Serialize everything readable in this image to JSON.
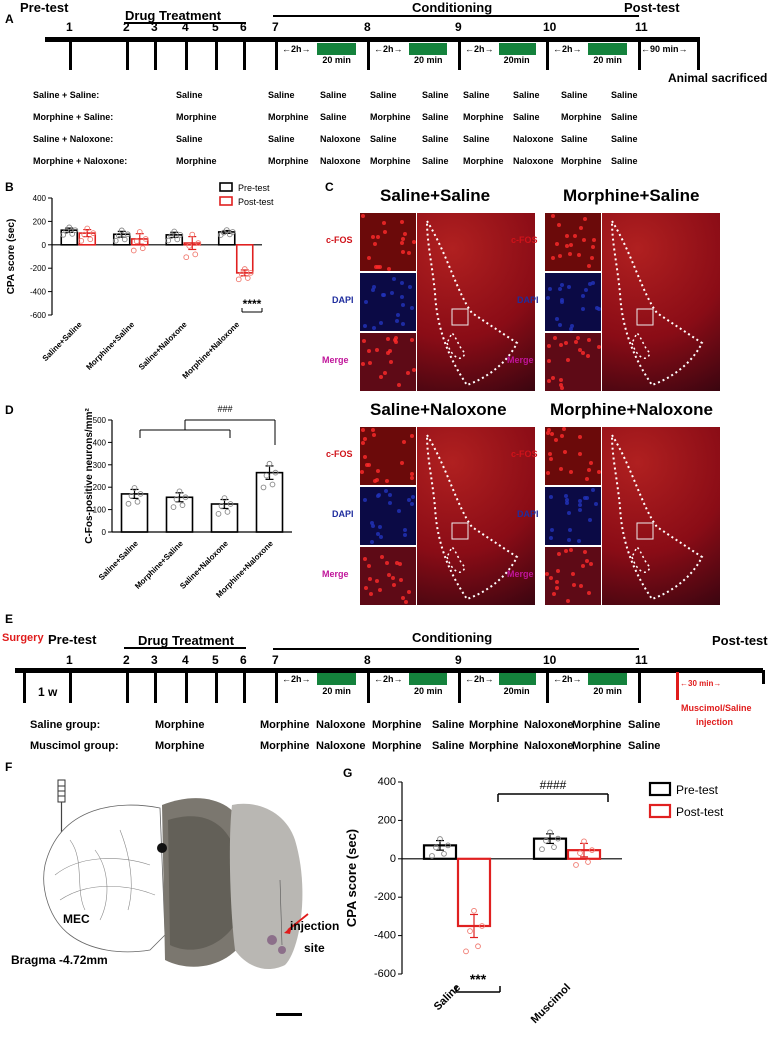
{
  "panelA": {
    "letter": "A",
    "phases": {
      "pretest": "Pre-test",
      "drug": "Drug Treatment",
      "conditioning": "Conditioning",
      "posttest": "Post-test"
    },
    "days": [
      "1",
      "2",
      "3",
      "4",
      "5",
      "6",
      "7",
      "8",
      "9",
      "10",
      "11"
    ],
    "gap_labels": [
      "2h",
      "2h",
      "2h",
      "2h"
    ],
    "session_labels": [
      "20 min",
      "20 min",
      "20min",
      "20 min"
    ],
    "after_label": "90 min",
    "end_label": "Animal sacrificed",
    "groups": [
      {
        "name": "Saline + Saline:",
        "drug": "Saline",
        "cond": [
          "Saline",
          "Saline",
          "Saline",
          "Saline",
          "Saline",
          "Saline",
          "Saline",
          "Saline"
        ]
      },
      {
        "name": "Morphine + Saline:",
        "drug": "Morphine",
        "cond": [
          "Morphine",
          "Saline",
          "Morphine",
          "Saline",
          "Morphine",
          "Saline",
          "Morphine",
          "Saline"
        ]
      },
      {
        "name": "Saline + Naloxone:",
        "drug": "Saline",
        "cond": [
          "Saline",
          "Naloxone",
          "Saline",
          "Saline",
          "Saline",
          "Naloxone",
          "Saline",
          "Saline"
        ]
      },
      {
        "name": "Morphine + Naloxone:",
        "drug": "Morphine",
        "cond": [
          "Morphine",
          "Naloxone",
          "Morphine",
          "Saline",
          "Morphine",
          "Naloxone",
          "Morphine",
          "Saline"
        ]
      }
    ]
  },
  "panelC": {
    "letter": "C",
    "titles": [
      "Saline+Saline",
      "Morphine+Saline",
      "Saline+Naloxone",
      "Morphine+Naloxone"
    ],
    "channels": [
      "c-FOS",
      "DAPI",
      "Merge"
    ],
    "colors": {
      "cfos": "#d0121a",
      "dapi": "#1f2d9e",
      "merge": "#c0149a"
    }
  },
  "panelE": {
    "letter": "E",
    "surgery": "Surgery",
    "phases": {
      "pretest": "Pre-test",
      "drug": "Drug Treatment",
      "conditioning": "Conditioning",
      "posttest": "Post-test"
    },
    "days": [
      "1",
      "2",
      "3",
      "4",
      "5",
      "6",
      "7",
      "8",
      "9",
      "10",
      "11"
    ],
    "week": "1 w",
    "gap_labels": [
      "2h",
      "2h",
      "2h",
      "2h"
    ],
    "session_labels": [
      "20 min",
      "20 min",
      "20min",
      "20 min"
    ],
    "after_label": "30 min",
    "injection": [
      "Muscimol/Saline",
      "injection"
    ],
    "groups": [
      {
        "name": "Saline group:",
        "drug": "Morphine",
        "cond": "Morphine  Naloxone  Morphine  Saline   Morphine  Naloxone    Morphine  Saline"
      },
      {
        "name": "Muscimol group:",
        "drug": "Morphine",
        "cond": "Morphine  Naloxone  Morphine  Saline   Morphine  Naloxone    Morphine  Saline"
      }
    ]
  },
  "panelF": {
    "letter": "F",
    "region": "MEC",
    "coord": "Bragma -4.72mm",
    "annot": [
      "injection",
      "site"
    ]
  },
  "chart_data": [
    {
      "id": "B",
      "type": "bar",
      "ylabel": "CPA score (sec)",
      "categories": [
        "Saline+Saline",
        "Morphine+Saline",
        "Saline+Naloxone",
        "Morphine+Naloxone"
      ],
      "series": [
        {
          "name": "Pre-test",
          "values": [
            125,
            90,
            85,
            110
          ],
          "err": [
            18,
            25,
            22,
            12
          ],
          "color": "#000000"
        },
        {
          "name": "Post-test",
          "values": [
            100,
            50,
            15,
            -240
          ],
          "err": [
            30,
            45,
            55,
            25
          ],
          "color": "#e02020"
        }
      ],
      "ylim": [
        -600,
        400
      ],
      "yticks": [
        -600,
        -400,
        -200,
        0,
        200,
        400
      ],
      "significance": "****",
      "legend": "top-right"
    },
    {
      "id": "D",
      "type": "bar",
      "ylabel": "C-Fos-positive neurons/mm²",
      "categories": [
        "Saline+Saline",
        "Morphine+Saline",
        "Saline+Naloxone",
        "Morphine+Naloxone"
      ],
      "series": [
        {
          "name": "",
          "values": [
            170,
            155,
            125,
            265
          ],
          "err": [
            20,
            20,
            20,
            30
          ],
          "color": "#000000"
        }
      ],
      "ylim": [
        0,
        500
      ],
      "yticks": [
        0,
        100,
        200,
        300,
        400,
        500
      ],
      "significance": "###"
    },
    {
      "id": "G",
      "type": "bar",
      "ylabel": "CPA score (sec)",
      "categories": [
        "Saline",
        "Muscimol"
      ],
      "series": [
        {
          "name": "Pre-test",
          "values": [
            70,
            105
          ],
          "err": [
            25,
            25
          ],
          "color": "#000000"
        },
        {
          "name": "Post-test",
          "values": [
            -350,
            45
          ],
          "err": [
            60,
            35
          ],
          "color": "#e02020"
        }
      ],
      "ylim": [
        -600,
        400
      ],
      "yticks": [
        -600,
        -400,
        -200,
        0,
        200,
        400
      ],
      "significance": [
        "***",
        "####"
      ],
      "legend": "right"
    }
  ]
}
